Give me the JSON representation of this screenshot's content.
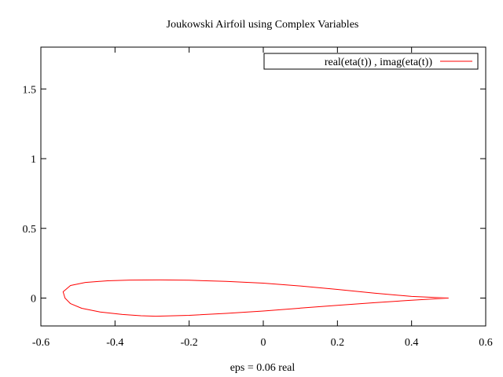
{
  "chart_data": {
    "type": "line",
    "title": "Joukowski Airfoil using Complex Variables",
    "xlabel": "eps = 0.06 real",
    "ylabel": "",
    "xlim": [
      -0.6,
      0.6
    ],
    "ylim": [
      -0.2,
      1.8
    ],
    "xticks": [
      -0.6,
      -0.4,
      -0.2,
      0,
      0.2,
      0.4,
      0.6
    ],
    "xtick_labels": [
      "-0.6",
      "-0.4",
      "-0.2",
      "0",
      "0.2",
      "0.4",
      "0.6"
    ],
    "yticks": [
      0,
      0.5,
      1,
      1.5
    ],
    "ytick_labels": [
      "0",
      "0.5",
      "1",
      "1.5"
    ],
    "grid": false,
    "legend_position": "top-right",
    "series": [
      {
        "name": "real(eta(t)) , imag(eta(t))",
        "color": "#ff0000",
        "x": [
          0.5,
          0.4,
          0.3,
          0.2,
          0.1,
          0.0,
          -0.1,
          -0.2,
          -0.28,
          -0.36,
          -0.42,
          -0.48,
          -0.52,
          -0.54,
          -0.535,
          -0.52,
          -0.49,
          -0.44,
          -0.38,
          -0.33,
          -0.29,
          -0.26,
          -0.2,
          -0.1,
          0.0,
          0.1,
          0.2,
          0.3,
          0.4,
          0.5
        ],
        "y": [
          0.0,
          0.012,
          0.035,
          0.062,
          0.087,
          0.107,
          0.12,
          0.128,
          0.13,
          0.129,
          0.124,
          0.112,
          0.09,
          0.045,
          0.0,
          -0.04,
          -0.073,
          -0.1,
          -0.118,
          -0.127,
          -0.13,
          -0.128,
          -0.124,
          -0.11,
          -0.093,
          -0.072,
          -0.052,
          -0.033,
          -0.015,
          0.0
        ]
      }
    ]
  }
}
